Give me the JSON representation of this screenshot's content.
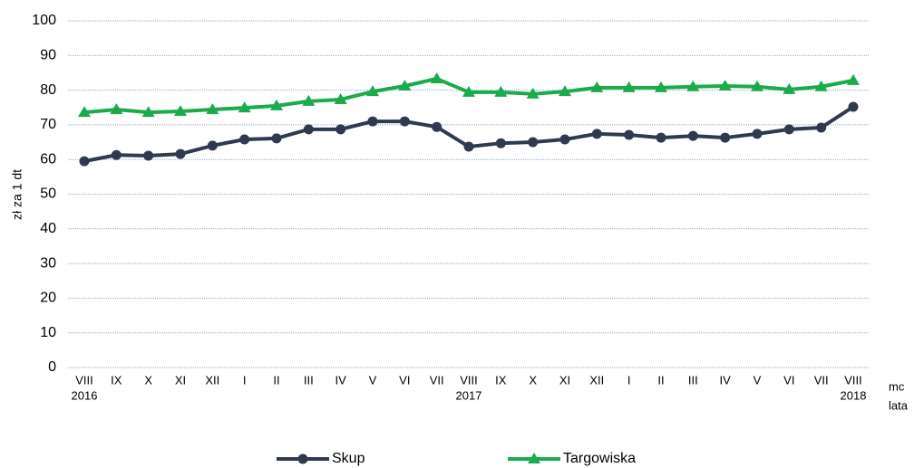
{
  "chart_data": {
    "type": "line",
    "ylabel": "zł za 1 dt",
    "xlabel": "mc",
    "xlabel2": "lata",
    "categories": [
      "VIII",
      "IX",
      "X",
      "XI",
      "XII",
      "I",
      "II",
      "III",
      "IV",
      "V",
      "VI",
      "VII",
      "VIII",
      "IX",
      "X",
      "XI",
      "XII",
      "I",
      "II",
      "III",
      "IV",
      "V",
      "VI",
      "VII",
      "VIII"
    ],
    "category_years": [
      "2016",
      null,
      null,
      null,
      null,
      null,
      null,
      null,
      null,
      null,
      null,
      null,
      "2017",
      null,
      null,
      null,
      null,
      null,
      null,
      null,
      null,
      null,
      null,
      null,
      "2018"
    ],
    "series": [
      {
        "name": "Skup",
        "color": "#2f3a4f",
        "marker": "circle",
        "values": [
          59.5,
          61.3,
          61.1,
          61.6,
          64,
          65.8,
          66.1,
          68.7,
          68.7,
          71,
          71,
          69.4,
          63.7,
          64.7,
          65,
          65.8,
          67.4,
          67.1,
          66.3,
          66.8,
          66.3,
          67.4,
          68.7,
          69.2,
          75.2
        ]
      },
      {
        "name": "Targowiska",
        "color": "#1aab4b",
        "marker": "triangle",
        "values": [
          73.6,
          74.4,
          73.6,
          73.9,
          74.4,
          74.9,
          75.5,
          76.8,
          77.3,
          79.6,
          81.2,
          83.3,
          79.4,
          79.4,
          78.9,
          79.6,
          80.7,
          80.7,
          80.7,
          81,
          81.2,
          81,
          80.2,
          81,
          82.8
        ]
      }
    ],
    "ylim": [
      0,
      100
    ],
    "yticks": [
      0,
      10,
      20,
      30,
      40,
      50,
      60,
      70,
      80,
      90,
      100
    ],
    "grid": true
  }
}
